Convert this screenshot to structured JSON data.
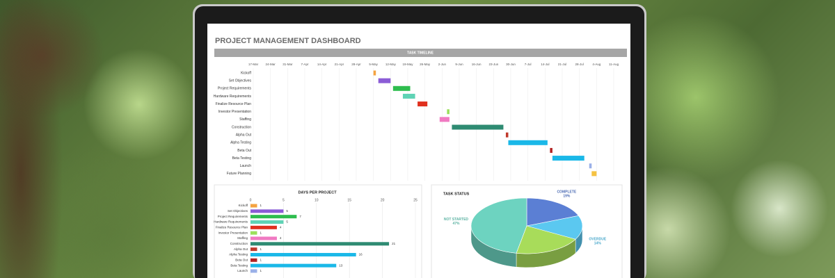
{
  "title": "PROJECT MANAGEMENT DASHBOARD",
  "chart_data": [
    {
      "type": "gantt",
      "title": "TASK TIMELINE",
      "categories": [
        "Kickoff",
        "Set Objectives",
        "Project Requirements",
        "Hardware Requirements",
        "Finalize Resource Plan",
        "Investor Presentation",
        "Staffing",
        "Construction",
        "Alpha Out",
        "Alpha Testing",
        "Beta Out",
        "Beta Testing",
        "Launch",
        "Future Planning"
      ],
      "start": [
        "5-May",
        "7-May",
        "13-May",
        "17-May",
        "23-May",
        "4-Jun",
        "1-Jun",
        "6-Jun",
        "28-Jun",
        "29-Jun",
        "16-Jul",
        "17-Jul",
        "1-Aug",
        "2-Aug"
      ],
      "values": [
        1,
        5,
        7,
        5,
        4,
        1,
        4,
        21,
        1,
        16,
        1,
        13,
        1,
        2
      ],
      "colors": [
        "#f4a340",
        "#8b5cd6",
        "#2ebd4e",
        "#5fd3b5",
        "#e0301e",
        "#9be05c",
        "#f07ac2",
        "#2e8b72",
        "#c0392b",
        "#1ab8e8",
        "#b22222",
        "#1ab8e8",
        "#9ab0e8",
        "#f5c242"
      ],
      "xlim": [
        "17-Mar",
        "11-Aug"
      ],
      "xticks": [
        "17-Mar",
        "24-Mar",
        "31-Mar",
        "7-Apr",
        "14-Apr",
        "21-Apr",
        "28-Apr",
        "5-May",
        "12-May",
        "19-May",
        "26-May",
        "2-Jun",
        "9-Jun",
        "16-Jun",
        "23-Jun",
        "30-Jun",
        "7-Jul",
        "14-Jul",
        "21-Jul",
        "28-Jul",
        "4-Aug",
        "11-Aug"
      ],
      "grid": true
    },
    {
      "type": "bar",
      "title": "DAYS PER PROJECT",
      "categories": [
        "Kickoff",
        "Set Objectives",
        "Project Requirements",
        "Hardware Requirements",
        "Finalize Resource Plan",
        "Investor Presentation",
        "Staffing",
        "Construction",
        "Alpha Out",
        "Alpha Testing",
        "Beta Out",
        "Beta Testing",
        "Launch"
      ],
      "values": [
        1,
        5,
        7,
        5,
        4,
        1,
        4,
        21,
        1,
        16,
        1,
        13,
        1
      ],
      "colors": [
        "#f4a340",
        "#8b5cd6",
        "#2ebd4e",
        "#5fd3b5",
        "#e0301e",
        "#9be05c",
        "#f07ac2",
        "#2e8b72",
        "#c0392b",
        "#1ab8e8",
        "#b22222",
        "#1ab8e8",
        "#9ab0e8"
      ],
      "xlim": [
        0,
        25
      ],
      "xticks": [
        0,
        5,
        10,
        15,
        20,
        25
      ],
      "grid": true
    },
    {
      "type": "pie",
      "title": "TASK STATUS",
      "categories": [
        "COMPLETE",
        "OVERDUE",
        null,
        "NOT STARTED"
      ],
      "values": [
        19,
        14,
        20,
        47
      ],
      "value_labels": [
        "19%",
        "14%",
        null,
        "47%"
      ],
      "colors": [
        "#5b7fd4",
        "#5bc8f0",
        "#a8dc5a",
        "#6dd3c0"
      ]
    }
  ]
}
